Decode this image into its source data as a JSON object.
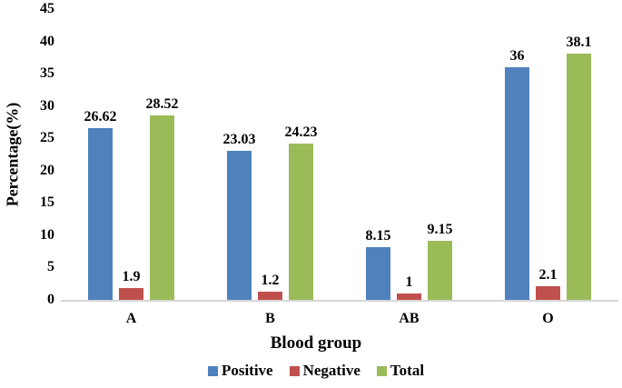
{
  "chart_data": {
    "type": "bar",
    "title": "",
    "xlabel": "Blood group",
    "ylabel": "Percentage(%)",
    "categories": [
      "A",
      "B",
      "AB",
      "O"
    ],
    "series": [
      {
        "name": "Positive",
        "color": "#4F81BD",
        "values": [
          26.62,
          23.03,
          8.15,
          36
        ]
      },
      {
        "name": "Negative",
        "color": "#C0504D",
        "values": [
          1.9,
          1.2,
          1,
          2.1
        ]
      },
      {
        "name": "Total",
        "color": "#9BBB59",
        "values": [
          28.52,
          24.23,
          9.15,
          38.1
        ]
      }
    ],
    "data_labels": [
      "26.62",
      "1.9",
      "28.52",
      "23.03",
      "1.2",
      "24.23",
      "8.15",
      "1",
      "9.15",
      "36",
      "2.1",
      "38.1"
    ],
    "ylim": [
      0,
      45
    ],
    "yticks": [
      0,
      5,
      10,
      15,
      20,
      25,
      30,
      35,
      40,
      45
    ],
    "grid": false,
    "legend_position": "bottom",
    "axis_line_color": "#D6D6D6",
    "text_color": "#000000",
    "background_color": "#FFFFFF"
  }
}
